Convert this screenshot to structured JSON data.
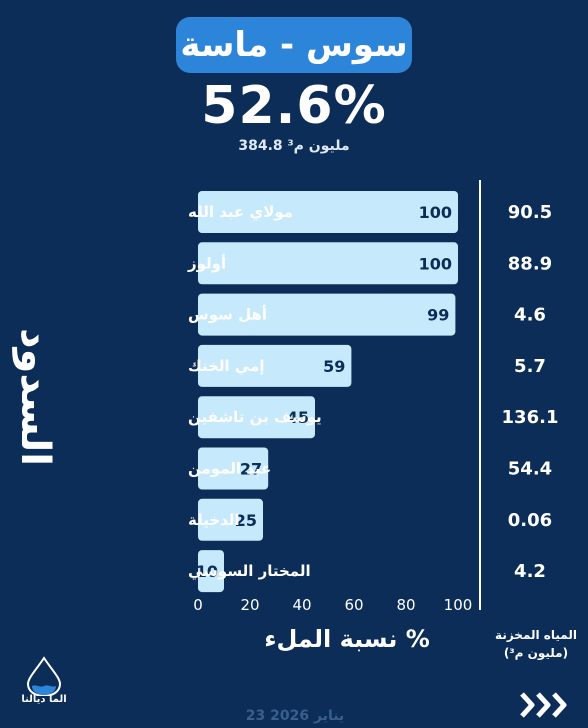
{
  "header": {
    "title": "سوس - ماسة",
    "percentage": "52.6%",
    "volume": "384.8 مليون م³"
  },
  "side_label": "السدود",
  "chart_data": {
    "type": "bar",
    "orientation": "horizontal",
    "categories": [
      "مولاي عبد الله",
      "أولوز",
      "أهل سوس",
      "إمي الخنك",
      "يوسف بن تاشفين",
      "عبد المومن",
      "الدخيلة",
      "المختار السوسي"
    ],
    "values": [
      100,
      100,
      99,
      59,
      45,
      27,
      25,
      10
    ],
    "value_labels": [
      "100",
      "100",
      "99",
      "59",
      "45",
      "27",
      "25",
      "10"
    ],
    "stored_water": [
      "90.5",
      "88.9",
      "4.6",
      "5.7",
      "136.1",
      "54.4",
      "0.06",
      "4.2"
    ],
    "xlabel": "نسبة الملء %",
    "xlim": [
      0,
      100
    ],
    "xticks": [
      "0",
      "20",
      "40",
      "60",
      "80",
      "100"
    ],
    "stored_label_line1": "المياه المخزنة",
    "stored_label_line2": "(مليون م³)",
    "bar_color": "#c6e9fc"
  },
  "footer": {
    "logo_text": "الما ديالنا",
    "date": "23 يناير 2026"
  },
  "colors": {
    "background": "#0b2d57",
    "title_pill": "#2d85d9",
    "bar": "#c6e9fc"
  }
}
